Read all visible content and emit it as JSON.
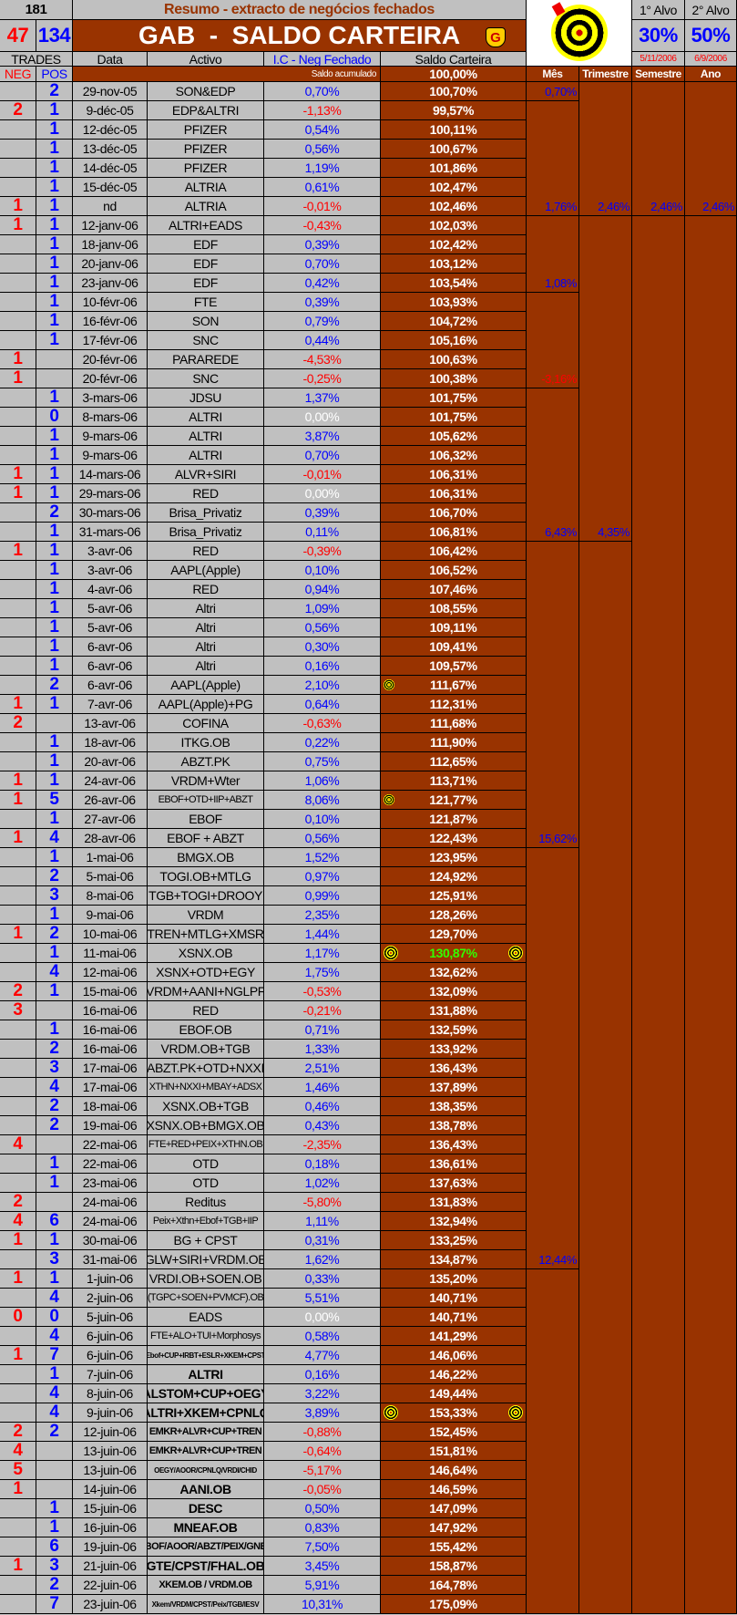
{
  "header": {
    "total_trades": "181",
    "subtitle": "Resumo - extracto de negócios fechados",
    "title": "GAB  -  SALDO CARTEIRA",
    "neg_count": "47",
    "pos_count": "134",
    "trades_label": "TRADES",
    "neg_label": "NEG",
    "pos_label": "POS",
    "col_data": "Data",
    "col_activo": "Activo",
    "col_ic": "I.C - Neg Fechado",
    "col_saldo": "Saldo Carteira",
    "saldo_acumulado_label": "Saldo acumulado",
    "saldo_inicial": "100,00%",
    "col_mes": "Mês",
    "col_trimestre": "Trimestre",
    "col_semestre": "Semestre",
    "col_ano": "Ano",
    "alvo1_label": "1° Alvo",
    "alvo2_label": "2° Alvo",
    "alvo1_value": "30%",
    "alvo2_value": "50%",
    "alvo1_date": "5/11/2006",
    "alvo2_date": "6/9/2006",
    "logo_letter": "G"
  },
  "colors": {
    "grey": "#c0c0c0",
    "brown": "#993300",
    "positive": "#0000ff",
    "negative": "#ff0000",
    "milestone": "#33ff00"
  },
  "rows": [
    [
      "",
      "2",
      "29-nov-05",
      "SON&EDP",
      "0,70%",
      "100,70%",
      0
    ],
    [
      "2",
      "1",
      "9-déc-05",
      "EDP&ALTRI",
      "-1,13%",
      "99,57%",
      0
    ],
    [
      "",
      "1",
      "12-déc-05",
      "PFIZER",
      "0,54%",
      "100,11%",
      0
    ],
    [
      "",
      "1",
      "13-déc-05",
      "PFIZER",
      "0,56%",
      "100,67%",
      0
    ],
    [
      "",
      "1",
      "14-déc-05",
      "PFIZER",
      "1,19%",
      "101,86%",
      0
    ],
    [
      "",
      "1",
      "15-déc-05",
      "ALTRIA",
      "0,61%",
      "102,47%",
      0
    ],
    [
      "1",
      "1",
      "nd",
      "ALTRIA",
      "-0,01%",
      "102,46%",
      0
    ],
    [
      "1",
      "1",
      "12-janv-06",
      "ALTRI+EADS",
      "-0,43%",
      "102,03%",
      0
    ],
    [
      "",
      "1",
      "18-janv-06",
      "EDF",
      "0,39%",
      "102,42%",
      0
    ],
    [
      "",
      "1",
      "20-janv-06",
      "EDF",
      "0,70%",
      "103,12%",
      0
    ],
    [
      "",
      "1",
      "23-janv-06",
      "EDF",
      "0,42%",
      "103,54%",
      0
    ],
    [
      "",
      "1",
      "10-févr-06",
      "FTE",
      "0,39%",
      "103,93%",
      0
    ],
    [
      "",
      "1",
      "16-févr-06",
      "SON",
      "0,79%",
      "104,72%",
      0
    ],
    [
      "",
      "1",
      "17-févr-06",
      "SNC",
      "0,44%",
      "105,16%",
      0
    ],
    [
      "1",
      "",
      "20-févr-06",
      "PARAREDE",
      "-4,53%",
      "100,63%",
      0
    ],
    [
      "1",
      "",
      "20-févr-06",
      "SNC",
      "-0,25%",
      "100,38%",
      0
    ],
    [
      "",
      "1",
      "3-mars-06",
      "JDSU",
      "1,37%",
      "101,75%",
      0
    ],
    [
      "",
      "0",
      "8-mars-06",
      "ALTRI",
      "0,00%",
      "101,75%",
      0
    ],
    [
      "",
      "1",
      "9-mars-06",
      "ALTRI",
      "3,87%",
      "105,62%",
      0
    ],
    [
      "",
      "1",
      "9-mars-06",
      "ALTRI",
      "0,70%",
      "106,32%",
      0
    ],
    [
      "1",
      "1",
      "14-mars-06",
      "ALVR+SIRI",
      "-0,01%",
      "106,31%",
      0
    ],
    [
      "1",
      "1",
      "29-mars-06",
      "RED",
      "0,00%",
      "106,31%",
      0
    ],
    [
      "",
      "2",
      "30-mars-06",
      "Brisa_Privatiz",
      "0,39%",
      "106,70%",
      0
    ],
    [
      "",
      "1",
      "31-mars-06",
      "Brisa_Privatiz",
      "0,11%",
      "106,81%",
      0
    ],
    [
      "1",
      "1",
      "3-avr-06",
      "RED",
      "-0,39%",
      "106,42%",
      0
    ],
    [
      "",
      "1",
      "3-avr-06",
      "AAPL(Apple)",
      "0,10%",
      "106,52%",
      0
    ],
    [
      "",
      "1",
      "4-avr-06",
      "RED",
      "0,94%",
      "107,46%",
      0
    ],
    [
      "",
      "1",
      "5-avr-06",
      "Altri",
      "1,09%",
      "108,55%",
      0
    ],
    [
      "",
      "1",
      "5-avr-06",
      "Altri",
      "0,56%",
      "109,11%",
      0
    ],
    [
      "",
      "1",
      "6-avr-06",
      "Altri",
      "0,30%",
      "109,41%",
      0
    ],
    [
      "",
      "1",
      "6-avr-06",
      "Altri",
      "0,16%",
      "109,57%",
      0
    ],
    [
      "",
      "2",
      "6-avr-06",
      "AAPL(Apple)",
      "2,10%",
      "111,67%",
      1
    ],
    [
      "1",
      "1",
      "7-avr-06",
      "AAPL(Apple)+PG",
      "0,64%",
      "112,31%",
      0
    ],
    [
      "2",
      "",
      "13-avr-06",
      "COFINA",
      "-0,63%",
      "111,68%",
      0
    ],
    [
      "",
      "1",
      "18-avr-06",
      "ITKG.OB",
      "0,22%",
      "111,90%",
      0
    ],
    [
      "",
      "1",
      "20-avr-06",
      "ABZT.PK",
      "0,75%",
      "112,65%",
      0
    ],
    [
      "1",
      "1",
      "24-avr-06",
      "VRDM+Wter",
      "1,06%",
      "113,71%",
      0
    ],
    [
      "1",
      "5",
      "26-avr-06",
      "EBOF+OTD+IIP+ABZT",
      "8,06%",
      "121,77%",
      1
    ],
    [
      "",
      "1",
      "27-avr-06",
      "EBOF",
      "0,10%",
      "121,87%",
      0
    ],
    [
      "1",
      "4",
      "28-avr-06",
      "EBOF + ABZT",
      "0,56%",
      "122,43%",
      0
    ],
    [
      "",
      "1",
      "1-mai-06",
      "BMGX.OB",
      "1,52%",
      "123,95%",
      0
    ],
    [
      "",
      "2",
      "5-mai-06",
      "TOGI.OB+MTLG",
      "0,97%",
      "124,92%",
      0
    ],
    [
      "",
      "3",
      "8-mai-06",
      "TGB+TOGI+DROOY",
      "0,99%",
      "125,91%",
      0
    ],
    [
      "",
      "1",
      "9-mai-06",
      "VRDM",
      "2,35%",
      "128,26%",
      0
    ],
    [
      "1",
      "2",
      "10-mai-06",
      "TREN+MTLG+XMSR",
      "1,44%",
      "129,70%",
      0
    ],
    [
      "",
      "1",
      "11-mai-06",
      "XSNX.OB",
      "1,17%",
      "130,87%",
      2
    ],
    [
      "",
      "4",
      "12-mai-06",
      "XSNX+OTD+EGY",
      "1,75%",
      "132,62%",
      0
    ],
    [
      "2",
      "1",
      "15-mai-06",
      "VRDM+AANI+NGLPF",
      "-0,53%",
      "132,09%",
      0
    ],
    [
      "3",
      "",
      "16-mai-06",
      "RED",
      "-0,21%",
      "131,88%",
      0
    ],
    [
      "",
      "1",
      "16-mai-06",
      "EBOF.OB",
      "0,71%",
      "132,59%",
      0
    ],
    [
      "",
      "2",
      "16-mai-06",
      "VRDM.OB+TGB",
      "1,33%",
      "133,92%",
      0
    ],
    [
      "",
      "3",
      "17-mai-06",
      "ABZT.PK+OTD+NXXI",
      "2,51%",
      "136,43%",
      0
    ],
    [
      "",
      "4",
      "17-mai-06",
      "XTHN+NXXI+MBAY+ADSX",
      "1,46%",
      "137,89%",
      0
    ],
    [
      "",
      "2",
      "18-mai-06",
      "XSNX.OB+TGB",
      "0,46%",
      "138,35%",
      0
    ],
    [
      "",
      "2",
      "19-mai-06",
      "XSNX.OB+BMGX.OB",
      "0,43%",
      "138,78%",
      0
    ],
    [
      "4",
      "",
      "22-mai-06",
      "FTE+RED+PEIX+XTHN.OB",
      "-2,35%",
      "136,43%",
      0
    ],
    [
      "",
      "1",
      "22-mai-06",
      "OTD",
      "0,18%",
      "136,61%",
      0
    ],
    [
      "",
      "1",
      "23-mai-06",
      "OTD",
      "1,02%",
      "137,63%",
      0
    ],
    [
      "2",
      "",
      "24-mai-06",
      "Reditus",
      "-5,80%",
      "131,83%",
      0
    ],
    [
      "4",
      "6",
      "24-mai-06",
      "Peix+Xthn+Ebof+TGB+IIP",
      "1,11%",
      "132,94%",
      0
    ],
    [
      "1",
      "1",
      "30-mai-06",
      "BG + CPST",
      "0,31%",
      "133,25%",
      0
    ],
    [
      "",
      "3",
      "31-mai-06",
      "GLW+SIRI+VRDM.OB",
      "1,62%",
      "134,87%",
      0
    ],
    [
      "1",
      "1",
      "1-juin-06",
      "VRDI.OB+SOEN.OB",
      "0,33%",
      "135,20%",
      0
    ],
    [
      "",
      "4",
      "2-juin-06",
      "(TGPC+SOEN+PVMCF).OB",
      "5,51%",
      "140,71%",
      0
    ],
    [
      "0",
      "0",
      "5-juin-06",
      "EADS",
      "0,00%",
      "140,71%",
      0
    ],
    [
      "",
      "4",
      "6-juin-06",
      "FTE+ALO+TUI+Morphosys",
      "0,58%",
      "141,29%",
      0
    ],
    [
      "1",
      "7",
      "6-juin-06",
      "Ebof+CUP+IRBT+ESLR+XKEM+CPST",
      "4,77%",
      "146,06%",
      0
    ],
    [
      "",
      "1",
      "7-juin-06",
      "ALTRI",
      "0,16%",
      "146,22%",
      0
    ],
    [
      "",
      "4",
      "8-juin-06",
      "ALSTOM+CUP+OEGY",
      "3,22%",
      "149,44%",
      0
    ],
    [
      "",
      "4",
      "9-juin-06",
      "ALTRI+XKEM+CPNLQ",
      "3,89%",
      "153,33%",
      2
    ],
    [
      "2",
      "2",
      "12-juin-06",
      "EMKR+ALVR+CUP+TREN",
      "-0,88%",
      "152,45%",
      0
    ],
    [
      "4",
      "",
      "13-juin-06",
      "EMKR+ALVR+CUP+TREN",
      "-0,64%",
      "151,81%",
      0
    ],
    [
      "5",
      "",
      "13-juin-06",
      "OEGY/AOOR/CPNLQ/VRDI/CHID",
      "-5,17%",
      "146,64%",
      0
    ],
    [
      "1",
      "",
      "14-juin-06",
      "AANI.OB",
      "-0,05%",
      "146,59%",
      0
    ],
    [
      "",
      "1",
      "15-juin-06",
      "DESC",
      "0,50%",
      "147,09%",
      0
    ],
    [
      "",
      "1",
      "16-juin-06",
      "MNEAF.OB",
      "0,83%",
      "147,92%",
      0
    ],
    [
      "",
      "6",
      "19-juin-06",
      "EBOF/AOOR/ABZT/PEIX/GNBT",
      "7,50%",
      "155,42%",
      0
    ],
    [
      "1",
      "3",
      "21-juin-06",
      "GTE/CPST/FHAL.OB",
      "3,45%",
      "158,87%",
      0
    ],
    [
      "",
      "2",
      "22-juin-06",
      "XKEM.OB / VRDM.OB",
      "5,91%",
      "164,78%",
      0
    ],
    [
      "",
      "7",
      "23-juin-06",
      "Xkem/VRDM/CPST/Peix/TGB/IESV",
      "10,31%",
      "175,09%",
      0
    ]
  ],
  "periods": {
    "mes": [
      {
        "rows": 1,
        "value": "0,70%"
      },
      {
        "rows": 6,
        "value": "1,76%"
      },
      {
        "rows": 4,
        "value": "1,08%"
      },
      {
        "rows": 5,
        "value": "-3,16%"
      },
      {
        "rows": 8,
        "value": "6,43%"
      },
      {
        "rows": 16,
        "value": "15,62%"
      },
      {
        "rows": 22,
        "value": "12,44%"
      },
      {
        "rows": 18,
        "value": ""
      }
    ],
    "trimestre": [
      {
        "rows": 7,
        "value": "2,46%"
      },
      {
        "rows": 17,
        "value": "4,35%"
      },
      {
        "rows": 56,
        "value": ""
      }
    ],
    "semestre": [
      {
        "rows": 7,
        "value": "2,46%"
      },
      {
        "rows": 73,
        "value": ""
      }
    ],
    "ano": [
      {
        "rows": 7,
        "value": "2,46%"
      },
      {
        "rows": 73,
        "value": ""
      }
    ]
  }
}
